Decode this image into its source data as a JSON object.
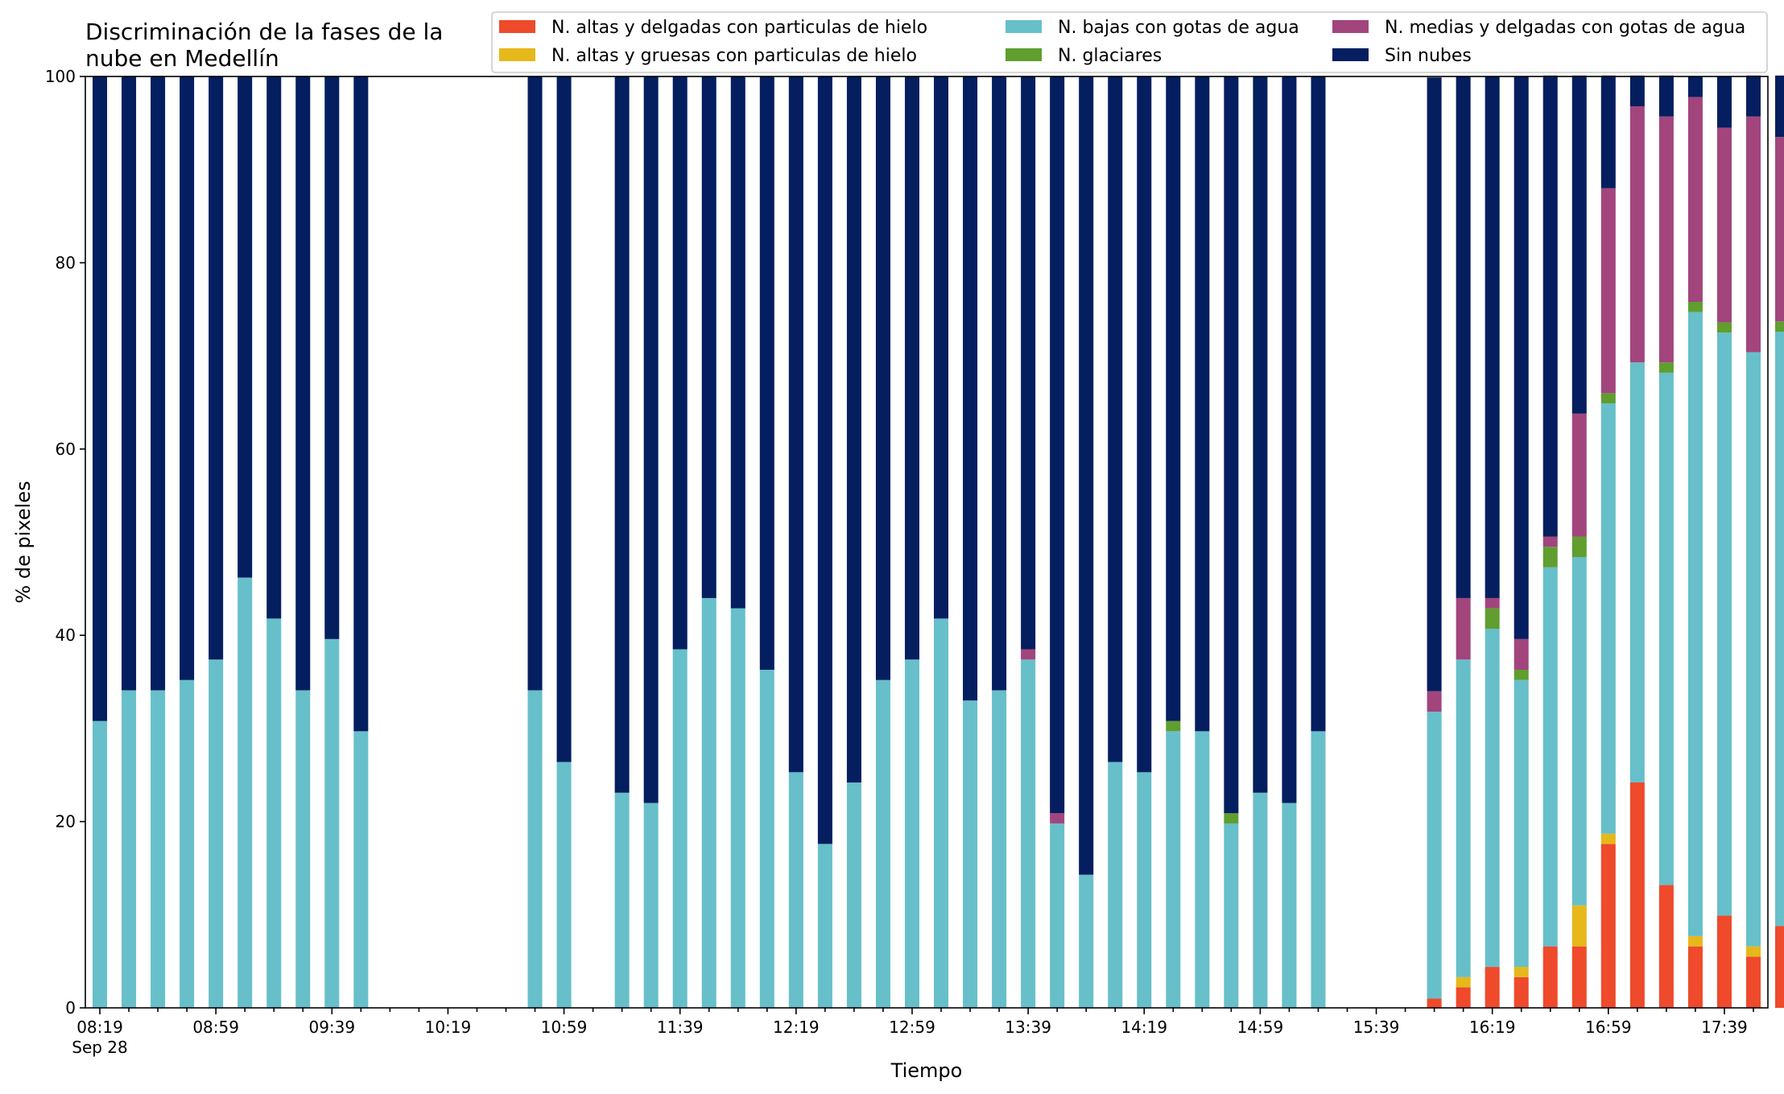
{
  "chart_data": {
    "type": "bar",
    "stacked": true,
    "title_lines": [
      "Discriminación de la fases de la",
      "nube en Medellín"
    ],
    "xlabel": "Tiempo",
    "ylabel": "% de pixeles",
    "ylim": [
      0,
      100
    ],
    "yticks": [
      0,
      20,
      40,
      60,
      80,
      100
    ],
    "grid": false,
    "legend_position": "top-right",
    "x_start": "08:19",
    "x_step_minutes": 10,
    "slot_count": 58,
    "xtick_labels": [
      "08:19",
      "08:59",
      "09:39",
      "10:19",
      "10:59",
      "11:39",
      "12:19",
      "12:59",
      "13:39",
      "14:19",
      "14:59",
      "15:39",
      "16:19",
      "16:59",
      "17:39"
    ],
    "xtick_date": "Sep 28",
    "bar_times": [
      "08:19",
      "08:29",
      "08:39",
      "08:49",
      "08:59",
      "09:09",
      "09:19",
      "09:29",
      "09:39",
      "09:49",
      "10:49",
      "10:59",
      "11:19",
      "11:29",
      "11:39",
      "11:49",
      "11:59",
      "12:09",
      "12:19",
      "12:29",
      "12:39",
      "12:49",
      "12:59",
      "13:09",
      "13:19",
      "13:29",
      "13:39",
      "13:49",
      "13:59",
      "14:09",
      "14:19",
      "14:29",
      "14:39",
      "14:49",
      "14:59",
      "15:09",
      "15:19",
      "15:59",
      "16:09",
      "16:19",
      "16:29",
      "16:39",
      "16:49",
      "16:59",
      "17:09",
      "17:19",
      "17:29",
      "17:39",
      "17:49",
      "17:59"
    ],
    "series": [
      {
        "name": "N. altas y delgadas con particulas de hielo",
        "color": "#ee4a2b",
        "values": [
          0,
          0,
          0,
          0,
          0,
          0,
          0,
          0,
          0,
          0,
          0,
          0,
          0,
          0,
          0,
          0,
          0,
          0,
          0,
          0,
          0,
          0,
          0,
          0,
          0,
          0,
          0,
          0,
          0,
          0,
          0,
          0,
          0,
          0,
          0,
          0,
          0,
          1,
          2.2,
          4.4,
          3.3,
          6.6,
          6.6,
          17.6,
          24.2,
          13.2,
          6.6,
          9.9,
          5.5,
          8.8
        ]
      },
      {
        "name": "N. altas y gruesas con particulas de hielo",
        "color": "#e6b81a",
        "values": [
          0,
          0,
          0,
          0,
          0,
          0,
          0,
          0,
          0,
          0,
          0,
          0,
          0,
          0,
          0,
          0,
          0,
          0,
          0,
          0,
          0,
          0,
          0,
          0,
          0,
          0,
          0,
          0,
          0,
          0,
          0,
          0,
          0,
          0,
          0,
          0,
          0,
          0,
          1.1,
          0,
          1.1,
          0,
          4.4,
          1.1,
          0,
          0,
          1.1,
          0,
          1.1,
          0
        ]
      },
      {
        "name": "N. bajas con gotas de agua",
        "color": "#67bfca",
        "values": [
          30.8,
          34.1,
          34.1,
          35.2,
          37.4,
          46.2,
          41.8,
          34.1,
          39.6,
          29.7,
          34.1,
          26.4,
          23.1,
          22.0,
          38.5,
          44.0,
          42.9,
          36.3,
          25.3,
          17.6,
          24.2,
          35.2,
          37.4,
          41.8,
          33.0,
          34.1,
          37.4,
          19.8,
          14.3,
          26.4,
          25.3,
          29.7,
          29.7,
          19.8,
          23.1,
          22.0,
          29.7,
          30.8,
          34.1,
          36.3,
          30.8,
          40.7,
          37.4,
          46.2,
          45.1,
          55.0,
          67.0,
          62.6,
          63.8,
          63.8
        ]
      },
      {
        "name": "N. glaciares",
        "color": "#5f9e2f",
        "values": [
          0,
          0,
          0,
          0,
          0,
          0,
          0,
          0,
          0,
          0,
          0,
          0,
          0,
          0,
          0,
          0,
          0,
          0,
          0,
          0,
          0,
          0,
          0,
          0,
          0,
          0,
          0,
          0,
          0,
          0,
          0,
          1.1,
          0,
          1.1,
          0,
          0,
          0,
          0,
          0,
          2.2,
          1.1,
          2.2,
          2.2,
          1.1,
          0,
          1.1,
          1.1,
          1.1,
          0,
          1.1
        ]
      },
      {
        "name": "N. medias y delgadas con gotas de agua",
        "color": "#a2457d",
        "values": [
          0,
          0,
          0,
          0,
          0,
          0,
          0,
          0,
          0,
          0,
          0,
          0,
          0,
          0,
          0,
          0,
          0,
          0,
          0,
          0,
          0,
          0,
          0,
          0,
          0,
          0,
          1.1,
          1.1,
          0,
          0,
          0,
          0,
          0,
          0,
          0,
          0,
          0,
          2.2,
          6.6,
          1.1,
          3.3,
          1.1,
          13.2,
          22.0,
          27.5,
          26.4,
          22.0,
          20.9,
          25.3,
          19.8
        ]
      },
      {
        "name": "Sin nubes",
        "color": "#041e5f",
        "values": [
          69.2,
          65.9,
          65.9,
          64.8,
          62.6,
          53.8,
          58.2,
          65.9,
          60.4,
          70.3,
          65.9,
          73.6,
          76.9,
          78.0,
          61.5,
          56.0,
          57.1,
          63.7,
          74.7,
          82.4,
          75.8,
          64.8,
          62.6,
          58.2,
          67.0,
          65.9,
          61.5,
          79.1,
          85.7,
          73.6,
          74.7,
          69.2,
          70.3,
          79.1,
          76.9,
          78.0,
          70.3,
          65.9,
          56.0,
          56.0,
          60.4,
          49.5,
          36.3,
          12.1,
          3.3,
          4.4,
          2.2,
          5.5,
          4.4,
          6.6
        ]
      }
    ],
    "legend_order": [
      0,
      1,
      2,
      3,
      4,
      5
    ]
  }
}
